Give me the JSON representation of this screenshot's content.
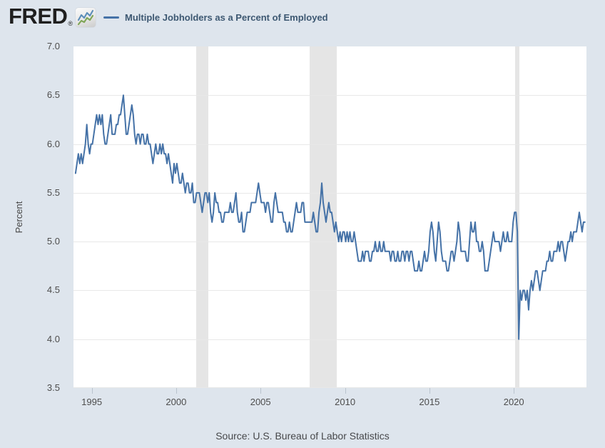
{
  "header": {
    "logo_text": "FRED",
    "logo_registered": "®",
    "legend": {
      "series_label": "Multiple Jobholders as a Percent of Employed",
      "series_color": "#4572a7"
    }
  },
  "chart_data": {
    "type": "line",
    "title": "Multiple Jobholders as a Percent of Employed",
    "ylabel": "Percent",
    "xlabel": "",
    "frequency": "monthly",
    "start_year": 1994,
    "start_month": 1,
    "end_label": "2024-03",
    "ylim": [
      3.5,
      7.0
    ],
    "xlim_years": [
      1993.92,
      2024.3
    ],
    "grid": "horizontal-only",
    "legend_position": "top-left",
    "y_ticks": [
      7.0,
      6.5,
      6.0,
      5.5,
      5.0,
      4.5,
      4.0,
      3.5
    ],
    "y_tick_labels": [
      "7.0",
      "6.5",
      "6.0",
      "5.5",
      "5.0",
      "4.5",
      "4.0",
      "3.5"
    ],
    "x_tick_years": [
      1995,
      2000,
      2005,
      2010,
      2015,
      2020
    ],
    "x_tick_labels": [
      "1995",
      "2000",
      "2005",
      "2010",
      "2015",
      "2020"
    ],
    "line_color": "#4572a7",
    "recession_band_color": "#e5e5e5",
    "recession_bands": [
      {
        "start": 2001.17,
        "end": 2001.92
      },
      {
        "start": 2007.92,
        "end": 2009.5
      },
      {
        "start": 2020.08,
        "end": 2020.33
      }
    ],
    "values": [
      5.7,
      5.8,
      5.9,
      5.8,
      5.9,
      5.8,
      5.9,
      6.0,
      6.2,
      6.0,
      5.9,
      6.0,
      6.0,
      6.1,
      6.2,
      6.3,
      6.2,
      6.3,
      6.2,
      6.3,
      6.1,
      6.0,
      6.0,
      6.1,
      6.2,
      6.3,
      6.1,
      6.1,
      6.1,
      6.2,
      6.2,
      6.3,
      6.3,
      6.4,
      6.5,
      6.3,
      6.1,
      6.1,
      6.2,
      6.3,
      6.4,
      6.3,
      6.1,
      6.0,
      6.1,
      6.1,
      6.0,
      6.1,
      6.1,
      6.0,
      6.0,
      6.1,
      6.0,
      6.0,
      5.9,
      5.8,
      5.9,
      6.0,
      5.9,
      5.9,
      6.0,
      5.9,
      6.0,
      5.9,
      5.9,
      5.8,
      5.9,
      5.8,
      5.7,
      5.6,
      5.8,
      5.7,
      5.8,
      5.7,
      5.6,
      5.6,
      5.7,
      5.6,
      5.5,
      5.6,
      5.6,
      5.5,
      5.5,
      5.6,
      5.4,
      5.4,
      5.5,
      5.5,
      5.5,
      5.4,
      5.3,
      5.4,
      5.5,
      5.5,
      5.4,
      5.5,
      5.3,
      5.2,
      5.3,
      5.5,
      5.4,
      5.4,
      5.3,
      5.3,
      5.2,
      5.2,
      5.3,
      5.3,
      5.3,
      5.3,
      5.4,
      5.3,
      5.3,
      5.4,
      5.5,
      5.3,
      5.2,
      5.2,
      5.3,
      5.1,
      5.1,
      5.2,
      5.3,
      5.3,
      5.3,
      5.4,
      5.4,
      5.4,
      5.4,
      5.5,
      5.6,
      5.5,
      5.4,
      5.4,
      5.4,
      5.3,
      5.4,
      5.4,
      5.3,
      5.2,
      5.2,
      5.4,
      5.5,
      5.4,
      5.3,
      5.3,
      5.3,
      5.3,
      5.2,
      5.2,
      5.1,
      5.1,
      5.2,
      5.1,
      5.1,
      5.2,
      5.3,
      5.4,
      5.3,
      5.3,
      5.3,
      5.4,
      5.4,
      5.2,
      5.2,
      5.2,
      5.2,
      5.2,
      5.2,
      5.3,
      5.2,
      5.1,
      5.1,
      5.3,
      5.4,
      5.6,
      5.4,
      5.3,
      5.2,
      5.3,
      5.4,
      5.3,
      5.3,
      5.2,
      5.1,
      5.2,
      5.1,
      5.0,
      5.1,
      5.0,
      5.1,
      5.1,
      5.0,
      5.1,
      5.0,
      5.1,
      5.0,
      5.0,
      5.1,
      5.0,
      4.9,
      4.8,
      4.8,
      4.8,
      4.9,
      4.8,
      4.9,
      4.9,
      4.9,
      4.8,
      4.8,
      4.9,
      4.9,
      5.0,
      4.9,
      4.9,
      5.0,
      4.9,
      4.9,
      5.0,
      4.9,
      4.9,
      4.9,
      4.9,
      4.8,
      4.9,
      4.9,
      4.8,
      4.8,
      4.9,
      4.8,
      4.8,
      4.9,
      4.9,
      4.8,
      4.9,
      4.9,
      4.8,
      4.9,
      4.9,
      4.8,
      4.7,
      4.7,
      4.7,
      4.8,
      4.7,
      4.7,
      4.8,
      4.9,
      4.8,
      4.8,
      4.9,
      5.1,
      5.2,
      5.1,
      4.9,
      4.8,
      5.0,
      5.2,
      5.1,
      4.9,
      4.8,
      4.8,
      4.8,
      4.7,
      4.7,
      4.8,
      4.9,
      4.9,
      4.8,
      4.9,
      5.0,
      5.2,
      5.1,
      4.9,
      4.9,
      4.9,
      4.9,
      4.8,
      4.8,
      5.0,
      5.2,
      5.1,
      5.1,
      5.2,
      5.0,
      5.0,
      4.9,
      4.9,
      5.0,
      4.9,
      4.7,
      4.7,
      4.7,
      4.8,
      4.9,
      5.0,
      5.1,
      5.0,
      5.0,
      5.0,
      5.0,
      4.9,
      5.0,
      5.1,
      5.0,
      5.0,
      5.1,
      5.0,
      5.0,
      5.0,
      5.2,
      5.3,
      5.3,
      5.1,
      4.0,
      4.5,
      4.4,
      4.5,
      4.5,
      4.4,
      4.5,
      4.3,
      4.5,
      4.6,
      4.5,
      4.6,
      4.7,
      4.7,
      4.6,
      4.5,
      4.6,
      4.7,
      4.7,
      4.7,
      4.8,
      4.8,
      4.9,
      4.8,
      4.8,
      4.9,
      4.9,
      4.9,
      5.0,
      4.9,
      5.0,
      5.0,
      4.9,
      4.8,
      4.9,
      5.0,
      5.0,
      5.1,
      5.0,
      5.1,
      5.1,
      5.1,
      5.2,
      5.3,
      5.2,
      5.1,
      5.2,
      5.2
    ]
  },
  "footer": {
    "source": "Source: U.S. Bureau of Labor Statistics"
  },
  "colors": {
    "page_bg": "#dee5ed",
    "plot_bg": "#ffffff",
    "gridline": "#e8e8e8",
    "axis_text": "#4d4d4d",
    "legend_text": "#3d5872",
    "source_text": "#47484b",
    "logo_text": "#1f1f1f",
    "logo_icon_blue": "#5b8db8",
    "logo_icon_green": "#7fa557"
  }
}
